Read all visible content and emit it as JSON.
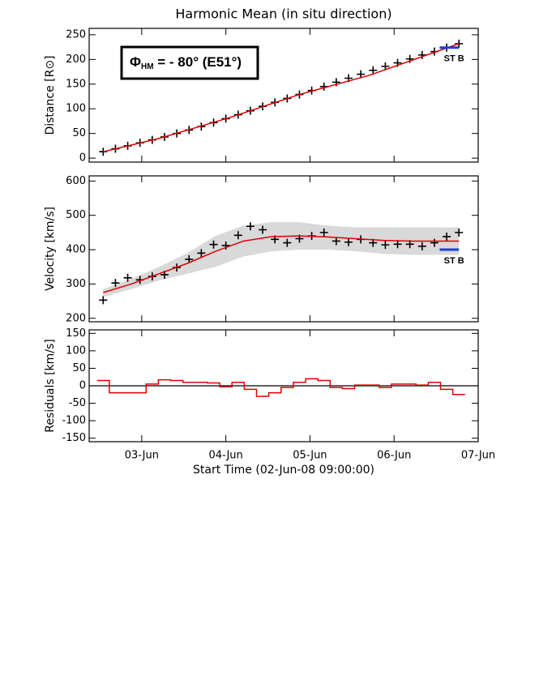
{
  "title": "Harmonic Mean (in situ direction)",
  "xlabel": "Start Time (02-Jun-08 09:00:00)",
  "annotation": {
    "symbol": "Φ",
    "subscript": "HM",
    "text": " = - 80° (E51°)"
  },
  "chart_data": [
    {
      "type": "scatter",
      "ylabel": "Distance [R⊙]",
      "xlim": [
        0,
        111
      ],
      "xticks": [
        15,
        39,
        63,
        87,
        111
      ],
      "ylim": [
        -8,
        263
      ],
      "yticks": [
        0,
        50,
        100,
        150,
        200,
        250
      ],
      "series": [
        {
          "marker": "+",
          "color": "#000000",
          "x": [
            4,
            7.5,
            11,
            14.5,
            18,
            21.5,
            25,
            28.5,
            32,
            35.5,
            39,
            42.5,
            46,
            49.5,
            53,
            56.5,
            60,
            63.5,
            67,
            70.5,
            74,
            77.5,
            81,
            84.5,
            88,
            91.5,
            95,
            98.5,
            102,
            105.5
          ],
          "values": [
            13,
            19,
            25,
            31,
            37,
            43,
            50,
            57,
            64,
            72,
            80,
            88,
            96,
            105,
            113,
            121,
            129,
            137,
            145,
            154,
            162,
            170,
            178,
            186,
            193,
            201,
            209,
            216,
            224,
            232
          ]
        },
        {
          "color": "#e00000",
          "x": [
            4,
            20,
            40,
            60,
            80,
            105.5
          ],
          "values": [
            13,
            40,
            82,
            129,
            168,
            232
          ]
        },
        {
          "label": "ST B",
          "color": "#1f3fd0",
          "x": [
            100,
            105.5
          ],
          "values": [
            224,
            224
          ]
        }
      ]
    },
    {
      "type": "scatter",
      "ylabel": "Velocity [km/s]",
      "xlim": [
        0,
        111
      ],
      "xticks": [
        15,
        39,
        63,
        87,
        111
      ],
      "ylim": [
        190,
        615
      ],
      "yticks": [
        200,
        300,
        400,
        500,
        600
      ],
      "band": {
        "color": "#d9d9d9",
        "x": [
          4,
          12,
          20,
          28,
          36,
          44,
          52,
          60,
          68,
          76,
          84,
          92,
          100,
          105.5
        ],
        "lower": [
          262,
          285,
          310,
          330,
          350,
          380,
          395,
          400,
          400,
          395,
          388,
          385,
          385,
          385
        ],
        "upper": [
          285,
          315,
          350,
          390,
          440,
          470,
          480,
          480,
          470,
          465,
          465,
          465,
          465,
          465
        ]
      },
      "series": [
        {
          "marker": "+",
          "color": "#000000",
          "x": [
            4,
            7.5,
            11,
            14.5,
            18,
            21.5,
            25,
            28.5,
            32,
            35.5,
            39,
            42.5,
            46,
            49.5,
            53,
            56.5,
            60,
            63.5,
            67,
            70.5,
            74,
            77.5,
            81,
            84.5,
            88,
            91.5,
            95,
            98.5,
            102,
            105.5
          ],
          "values": [
            253,
            303,
            318,
            312,
            322,
            327,
            348,
            372,
            390,
            415,
            412,
            442,
            468,
            458,
            430,
            420,
            432,
            440,
            450,
            425,
            422,
            430,
            420,
            414,
            416,
            416,
            410,
            420,
            438,
            450
          ]
        },
        {
          "color": "#e00000",
          "x": [
            4,
            12,
            20,
            28,
            36,
            44,
            52,
            60,
            68,
            76,
            84,
            92,
            100,
            105.5
          ],
          "values": [
            275,
            300,
            330,
            360,
            395,
            425,
            438,
            440,
            437,
            432,
            427,
            425,
            425,
            425
          ]
        },
        {
          "label": "ST B",
          "color": "#1f3fd0",
          "x": [
            100,
            105.5
          ],
          "values": [
            400,
            400
          ]
        }
      ]
    },
    {
      "type": "step",
      "ylabel": "Residuals [km/s]",
      "xlim": [
        0,
        111
      ],
      "xticks": [
        {
          "value": 15,
          "label": "03-Jun"
        },
        {
          "value": 39,
          "label": "04-Jun"
        },
        {
          "value": 63,
          "label": "05-Jun"
        },
        {
          "value": 87,
          "label": "06-Jun"
        },
        {
          "value": 111,
          "label": "07-Jun"
        }
      ],
      "ylim": [
        -160,
        160
      ],
      "yticks": [
        150,
        100,
        50,
        0,
        -50,
        -100,
        -150
      ],
      "series": [
        {
          "color": "#e00000",
          "x": [
            4,
            7.5,
            11,
            14.5,
            18,
            21.5,
            25,
            28.5,
            32,
            35.5,
            39,
            42.5,
            46,
            49.5,
            53,
            56.5,
            60,
            63.5,
            67,
            70.5,
            74,
            77.5,
            81,
            84.5,
            88,
            91.5,
            95,
            98.5,
            102,
            105.5
          ],
          "values": [
            15,
            -20,
            -20,
            -20,
            5,
            17,
            15,
            10,
            10,
            8,
            -3,
            10,
            -10,
            -30,
            -20,
            -5,
            10,
            20,
            15,
            -5,
            -8,
            2,
            2,
            -5,
            5,
            5,
            2,
            10,
            -10,
            -25
          ]
        }
      ]
    }
  ]
}
